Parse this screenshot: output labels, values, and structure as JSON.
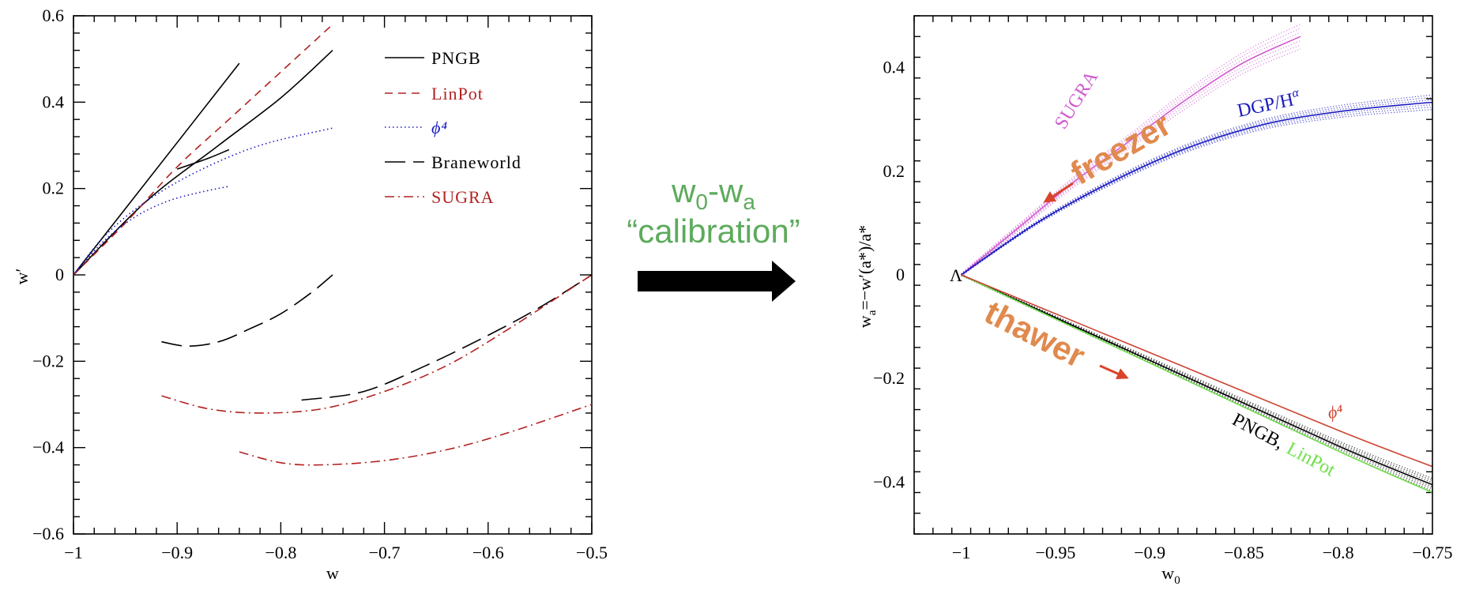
{
  "banner": {
    "w0": "w",
    "w0_sub": "0",
    "dash": "-w",
    "wa_sub": "a",
    "line2": "“calibration”",
    "color": "#5cab5c",
    "arrow_color": "#000000"
  },
  "chart_data": [
    {
      "type": "line",
      "title": "",
      "xlabel": "w",
      "ylabel": "w′",
      "xlim": [
        -1,
        -0.5
      ],
      "ylim": [
        -0.6,
        0.6
      ],
      "x_ticks": [
        -1,
        -0.9,
        -0.8,
        -0.7,
        -0.6,
        -0.5
      ],
      "x_tick_labels": [
        "−1",
        "−0.9",
        "−0.8",
        "−0.7",
        "−0.6",
        "−0.5"
      ],
      "y_ticks": [
        0.6,
        0.4,
        0.2,
        0,
        -0.2,
        -0.4,
        -0.6
      ],
      "y_tick_labels": [
        "0.6",
        "0.4",
        "0.2",
        "0",
        "−0.2",
        "−0.4",
        "−0.6"
      ],
      "legend_position": "top-right",
      "legend": [
        {
          "label": "PNGB",
          "color": "#000000",
          "dash": "solid"
        },
        {
          "label": "LinPot",
          "color": "#b22222",
          "dash": "short-dash"
        },
        {
          "label": "ϕ⁴",
          "color": "#1a1ac0",
          "dash": "dotted"
        },
        {
          "label": "Braneworld",
          "color": "#000000",
          "dash": "long-dash"
        },
        {
          "label": "SUGRA",
          "color": "#b22222",
          "dash": "dash-dot"
        }
      ],
      "series": [
        {
          "name": "PNGB",
          "style": "PNGB",
          "x": [
            -1,
            -0.84
          ],
          "y": [
            0,
            0.49
          ]
        },
        {
          "name": "PNGB",
          "style": "PNGB",
          "x": [
            -1,
            -0.93,
            -0.86,
            -0.8,
            -0.75
          ],
          "y": [
            0,
            0.17,
            0.3,
            0.41,
            0.52
          ]
        },
        {
          "name": "PNGB",
          "style": "PNGB",
          "x": [
            -0.9,
            -0.87,
            -0.85
          ],
          "y": [
            0.245,
            0.27,
            0.29
          ]
        },
        {
          "name": "LinPot",
          "style": "LinPot",
          "x": [
            -1,
            -0.95,
            -0.9,
            -0.85,
            -0.8,
            -0.75
          ],
          "y": [
            0,
            0.12,
            0.25,
            0.36,
            0.47,
            0.58
          ]
        },
        {
          "name": "ϕ⁴",
          "style": "phi4",
          "x": [
            -1,
            -0.97,
            -0.93,
            -0.88,
            -0.82,
            -0.75
          ],
          "y": [
            0,
            0.09,
            0.17,
            0.24,
            0.3,
            0.34
          ]
        },
        {
          "name": "ϕ⁴",
          "style": "phi4",
          "x": [
            -1,
            -0.97,
            -0.94,
            -0.91,
            -0.88,
            -0.85
          ],
          "y": [
            0,
            0.08,
            0.135,
            0.17,
            0.19,
            0.205
          ]
        },
        {
          "name": "Braneworld",
          "style": "Braneworld",
          "x": [
            -0.915,
            -0.89,
            -0.86,
            -0.83,
            -0.8,
            -0.77,
            -0.75
          ],
          "y": [
            -0.155,
            -0.165,
            -0.155,
            -0.125,
            -0.09,
            -0.04,
            0
          ]
        },
        {
          "name": "Braneworld",
          "style": "Braneworld",
          "x": [
            -0.78,
            -0.72,
            -0.66,
            -0.6,
            -0.55,
            -0.5
          ],
          "y": [
            -0.29,
            -0.27,
            -0.21,
            -0.14,
            -0.075,
            0
          ]
        },
        {
          "name": "SUGRA",
          "style": "SUGRA",
          "x": [
            -0.915,
            -0.87,
            -0.82,
            -0.76,
            -0.7,
            -0.64,
            -0.58,
            -0.5
          ],
          "y": [
            -0.28,
            -0.31,
            -0.32,
            -0.31,
            -0.27,
            -0.21,
            -0.125,
            0
          ]
        },
        {
          "name": "SUGRA",
          "style": "SUGRA",
          "x": [
            -0.84,
            -0.8,
            -0.76,
            -0.7,
            -0.64,
            -0.58,
            -0.5
          ],
          "y": [
            -0.41,
            -0.435,
            -0.44,
            -0.43,
            -0.405,
            -0.365,
            -0.3
          ]
        }
      ]
    },
    {
      "type": "line",
      "title": "",
      "xlabel": "w",
      "xlabel_sub": "0",
      "ylabel": "w",
      "ylabel_sub": "a",
      "ylabel_rest": "=−w′(a",
      "ylabel_star": "*",
      "ylabel_tail": ")/a",
      "xlim": [
        -1.025,
        -0.75
      ],
      "ylim": [
        -0.5,
        0.5
      ],
      "x_ticks": [
        -1,
        -0.95,
        -0.9,
        -0.85,
        -0.8,
        -0.75
      ],
      "x_tick_labels": [
        "−1",
        "−0.95",
        "−0.9",
        "−0.85",
        "−0.8",
        "−0.75"
      ],
      "y_ticks": [
        0.4,
        0.2,
        0,
        -0.2,
        -0.4
      ],
      "y_tick_labels": [
        "0.4",
        "0.2",
        "0",
        "−0.2",
        "−0.4"
      ],
      "origin_label": "Λ",
      "series": [
        {
          "name": "SUGRA",
          "color": "#d05ad0",
          "x": [
            -1,
            -0.97,
            -0.94,
            -0.91,
            -0.88,
            -0.85,
            -0.82
          ],
          "y": [
            0,
            0.09,
            0.18,
            0.26,
            0.34,
            0.41,
            0.46
          ],
          "band": 0.032
        },
        {
          "name": "DGP/H^α",
          "color": "#1a1ac0",
          "x": [
            -1,
            -0.96,
            -0.92,
            -0.88,
            -0.84,
            -0.8,
            -0.76,
            -0.75
          ],
          "y": [
            0,
            0.1,
            0.18,
            0.245,
            0.29,
            0.315,
            0.33,
            0.333
          ],
          "band": 0.014
        },
        {
          "name": "PNGB",
          "color": "#000000",
          "x": [
            -1,
            -0.9,
            -0.8,
            -0.75
          ],
          "y": [
            0,
            -0.165,
            -0.33,
            -0.405
          ],
          "band": 0.012
        },
        {
          "name": "LinPot",
          "color": "#6fe04a",
          "x": [
            -1,
            -0.9,
            -0.8,
            -0.75
          ],
          "y": [
            0,
            -0.17,
            -0.34,
            -0.42
          ],
          "band": 0
        },
        {
          "name": "ϕ⁴",
          "color": "#cc4433",
          "x": [
            -1,
            -0.9,
            -0.8,
            -0.75
          ],
          "y": [
            0,
            -0.15,
            -0.3,
            -0.37
          ],
          "band": 0
        }
      ],
      "annotations": {
        "sugra": "SUGRA",
        "dgp": "DGP/H",
        "dgp_sup": "α",
        "freezer": "freezer",
        "thawer": "thawer",
        "phi4": "ϕ⁴",
        "pngb": "PNGB,",
        "linpot": "LinPot"
      },
      "colors": {
        "orange": "#e08a4e",
        "arrow_red": "#d9442a",
        "sugra": "#d05ad0",
        "dgp": "#1a1ac0",
        "linpot": "#6fe04a",
        "phi4": "#cc4433"
      }
    }
  ]
}
